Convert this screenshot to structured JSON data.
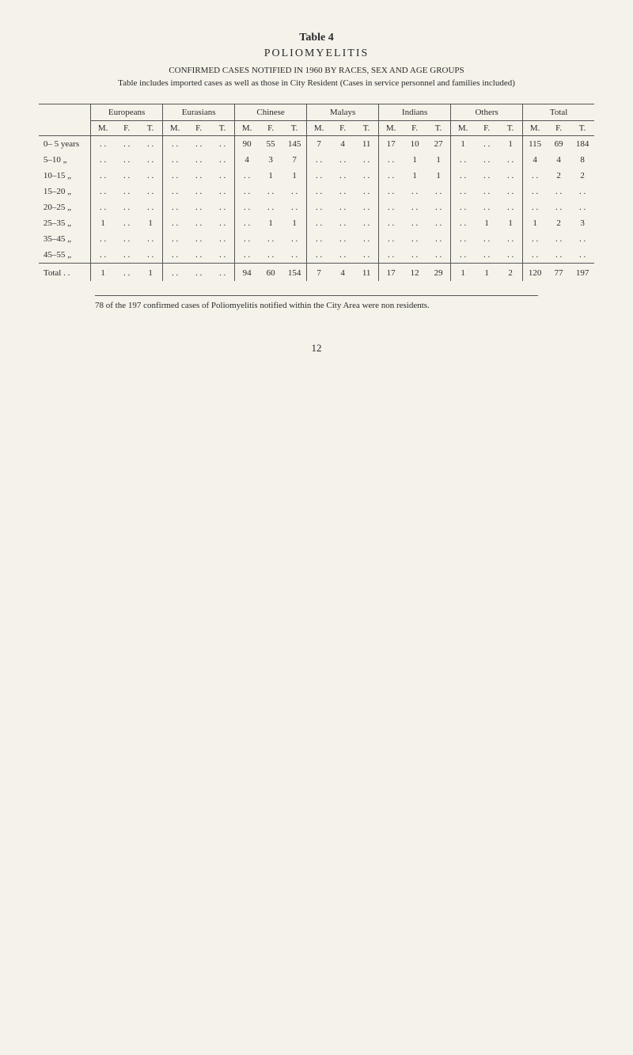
{
  "caption": {
    "table_no": "Table 4",
    "title": "POLIOMYELITIS",
    "subtitle_caps": "CONFIRMED CASES NOTIFIED IN 1960 BY RACES, SEX AND AGE GROUPS",
    "subtitle2": "Table includes imported cases as well as those in City Resident (Cases in service personnel and families included)"
  },
  "groups": [
    "Europeans",
    "Eurasians",
    "Chinese",
    "Malays",
    "Indians",
    "Others",
    "Total"
  ],
  "subcols": [
    "M.",
    "F.",
    "T."
  ],
  "row_labels": [
    "0– 5 years",
    "5–10    „",
    "10–15   „",
    "15–20   „",
    "20–25   „",
    "25–35   „",
    "35–45   „",
    "45–55   „"
  ],
  "ellipsis": ". .",
  "data": [
    [
      [
        ".",
        ".",
        "."
      ],
      [
        ".",
        ".",
        "."
      ],
      [
        "90",
        "55",
        "145"
      ],
      [
        "7",
        "4",
        "11"
      ],
      [
        "17",
        "10",
        "27"
      ],
      [
        "1",
        ".",
        "1"
      ],
      [
        "115",
        "69",
        "184"
      ]
    ],
    [
      [
        ".",
        ".",
        "."
      ],
      [
        ".",
        ".",
        "."
      ],
      [
        "4",
        "3",
        "7"
      ],
      [
        ".",
        ".",
        "."
      ],
      [
        ".",
        "1",
        "1"
      ],
      [
        ".",
        ".",
        "."
      ],
      [
        "4",
        "4",
        "8"
      ]
    ],
    [
      [
        ".",
        ".",
        "."
      ],
      [
        ".",
        ".",
        "."
      ],
      [
        ".",
        "1",
        "1"
      ],
      [
        ".",
        ".",
        "."
      ],
      [
        ".",
        "1",
        "1"
      ],
      [
        ".",
        ".",
        "."
      ],
      [
        ".",
        "2",
        "2"
      ]
    ],
    [
      [
        ".",
        ".",
        "."
      ],
      [
        ".",
        ".",
        "."
      ],
      [
        ".",
        ".",
        "."
      ],
      [
        ".",
        ".",
        "."
      ],
      [
        ".",
        ".",
        "."
      ],
      [
        ".",
        ".",
        "."
      ],
      [
        ".",
        ".",
        "."
      ]
    ],
    [
      [
        ".",
        ".",
        "."
      ],
      [
        ".",
        ".",
        "."
      ],
      [
        ".",
        ".",
        "."
      ],
      [
        ".",
        ".",
        "."
      ],
      [
        ".",
        ".",
        "."
      ],
      [
        ".",
        ".",
        "."
      ],
      [
        ".",
        ".",
        "."
      ]
    ],
    [
      [
        "1",
        ".",
        "1"
      ],
      [
        ".",
        ".",
        "."
      ],
      [
        ".",
        "1",
        "1"
      ],
      [
        ".",
        ".",
        "."
      ],
      [
        ".",
        ".",
        "."
      ],
      [
        ".",
        "1",
        "1"
      ],
      [
        "1",
        "2",
        "3"
      ]
    ],
    [
      [
        ".",
        ".",
        "."
      ],
      [
        ".",
        ".",
        "."
      ],
      [
        ".",
        ".",
        "."
      ],
      [
        ".",
        ".",
        "."
      ],
      [
        ".",
        ".",
        "."
      ],
      [
        ".",
        ".",
        "."
      ],
      [
        ".",
        ".",
        "."
      ]
    ],
    [
      [
        ".",
        ".",
        "."
      ],
      [
        ".",
        ".",
        "."
      ],
      [
        ".",
        ".",
        "."
      ],
      [
        ".",
        ".",
        "."
      ],
      [
        ".",
        ".",
        "."
      ],
      [
        ".",
        ".",
        "."
      ],
      [
        ".",
        ".",
        "."
      ]
    ]
  ],
  "total_label": "Total",
  "totals": [
    [
      "1",
      ".",
      "1"
    ],
    [
      ".",
      ".",
      "."
    ],
    [
      "94",
      "60",
      "154"
    ],
    [
      "7",
      "4",
      "11"
    ],
    [
      "17",
      "12",
      "29"
    ],
    [
      "1",
      "1",
      "2"
    ],
    [
      "120",
      "77",
      "197"
    ]
  ],
  "footnote": "78 of the 197 confirmed cases of Poliomyelitis notified within the City Area were non residents.",
  "page_number": "12",
  "styling": {
    "font_family": "Times New Roman",
    "body_font_size_pt": 11,
    "title_font_size_pt": 14,
    "background_color": "#f5f2ea",
    "text_color": "#2a2a2a",
    "rule_color": "#555555"
  }
}
